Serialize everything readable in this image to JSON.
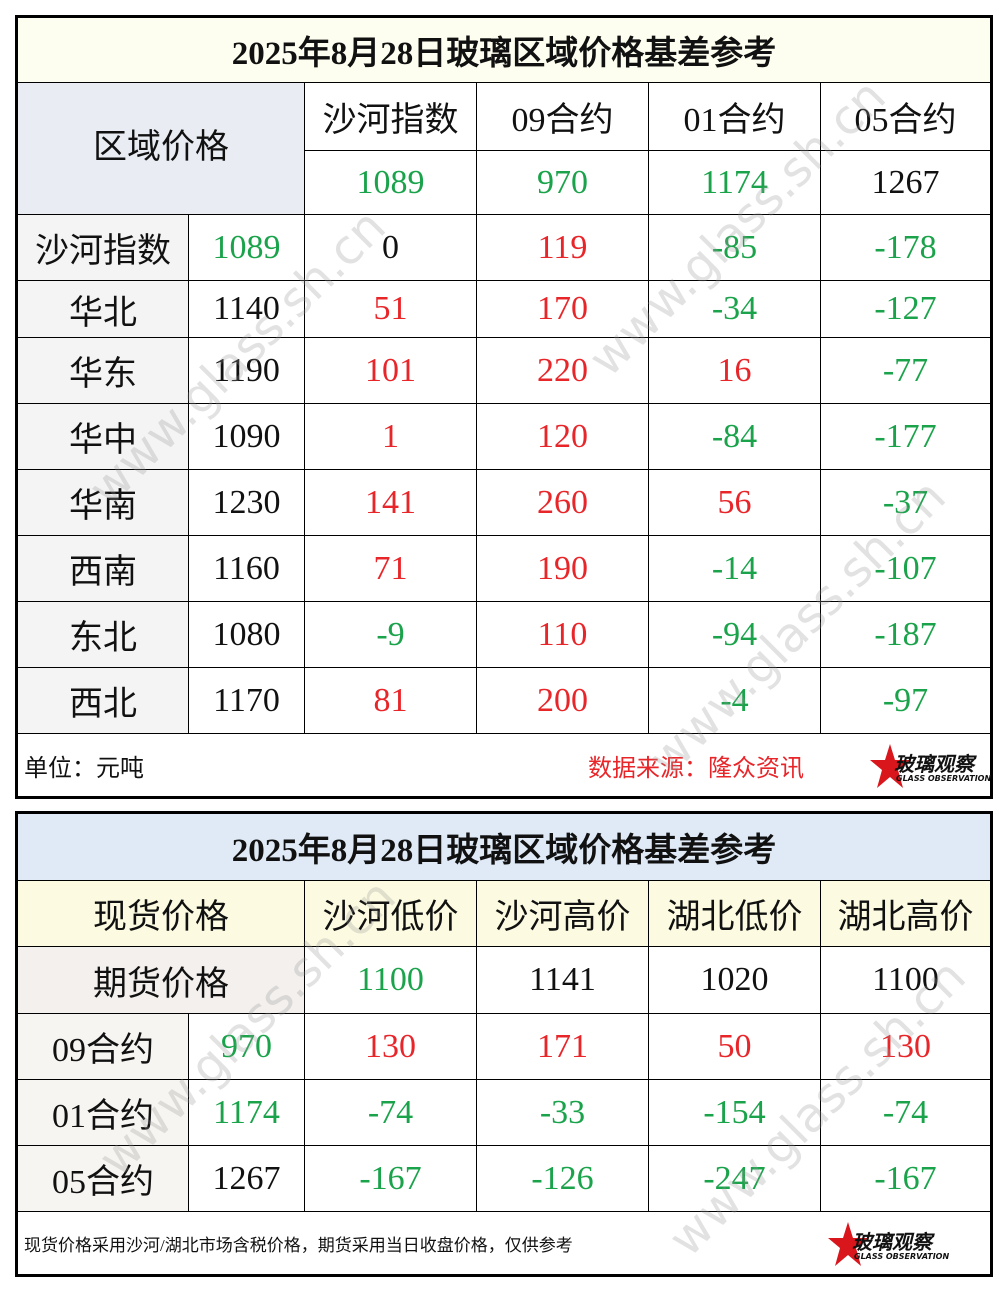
{
  "table1": {
    "title": "2025年8月28日玻璃区域价格基差参考",
    "corner": "区域价格",
    "columns": [
      "沙河指数",
      "09合约",
      "01合约",
      "05合约"
    ],
    "column_values": [
      1089,
      970,
      1174,
      1267
    ],
    "column_value_colors": [
      "green",
      "green",
      "green",
      "black"
    ],
    "rows": [
      {
        "label": "沙河指数",
        "value": 1089,
        "value_color": "green",
        "cells": [
          0,
          119,
          -85,
          -178
        ]
      },
      {
        "label": "华北",
        "value": 1140,
        "value_color": "black",
        "cells": [
          51,
          170,
          -34,
          -127
        ]
      },
      {
        "label": "华东",
        "value": 1190,
        "value_color": "black",
        "cells": [
          101,
          220,
          16,
          -77
        ]
      },
      {
        "label": "华中",
        "value": 1090,
        "value_color": "black",
        "cells": [
          1,
          120,
          -84,
          -177
        ]
      },
      {
        "label": "华南",
        "value": 1230,
        "value_color": "black",
        "cells": [
          141,
          260,
          56,
          -37
        ]
      },
      {
        "label": "西南",
        "value": 1160,
        "value_color": "black",
        "cells": [
          71,
          190,
          -14,
          -107
        ]
      },
      {
        "label": "东北",
        "value": 1080,
        "value_color": "black",
        "cells": [
          -9,
          110,
          -94,
          -187
        ]
      },
      {
        "label": "西北",
        "value": 1170,
        "value_color": "black",
        "cells": [
          81,
          200,
          -4,
          -97
        ]
      }
    ],
    "unit": "单位：元吨",
    "source": "数据来源：隆众资讯"
  },
  "table2": {
    "title": "2025年8月28日玻璃区域价格基差参考",
    "corner_top": "现货价格",
    "corner_bottom": "期货价格",
    "columns": [
      "沙河低价",
      "沙河高价",
      "湖北低价",
      "湖北高价"
    ],
    "column_values": [
      1100,
      1141,
      1020,
      1100
    ],
    "column_value_colors": [
      "green",
      "black",
      "black",
      "black"
    ],
    "rows": [
      {
        "label": "09合约",
        "value": 970,
        "value_color": "green",
        "cells": [
          130,
          171,
          50,
          130
        ]
      },
      {
        "label": "01合约",
        "value": 1174,
        "value_color": "green",
        "cells": [
          -74,
          -33,
          -154,
          -74
        ]
      },
      {
        "label": "05合约",
        "value": 1267,
        "value_color": "black",
        "cells": [
          -167,
          -126,
          -247,
          -167
        ]
      }
    ],
    "note": "现货价格采用沙河/湖北市场含税价格，期货采用当日收盘价格，仅供参考"
  },
  "logo": {
    "name": "玻璃观察",
    "subtitle": "GLASS OBSERVATION"
  },
  "watermark": "www.glass.sh.cn"
}
